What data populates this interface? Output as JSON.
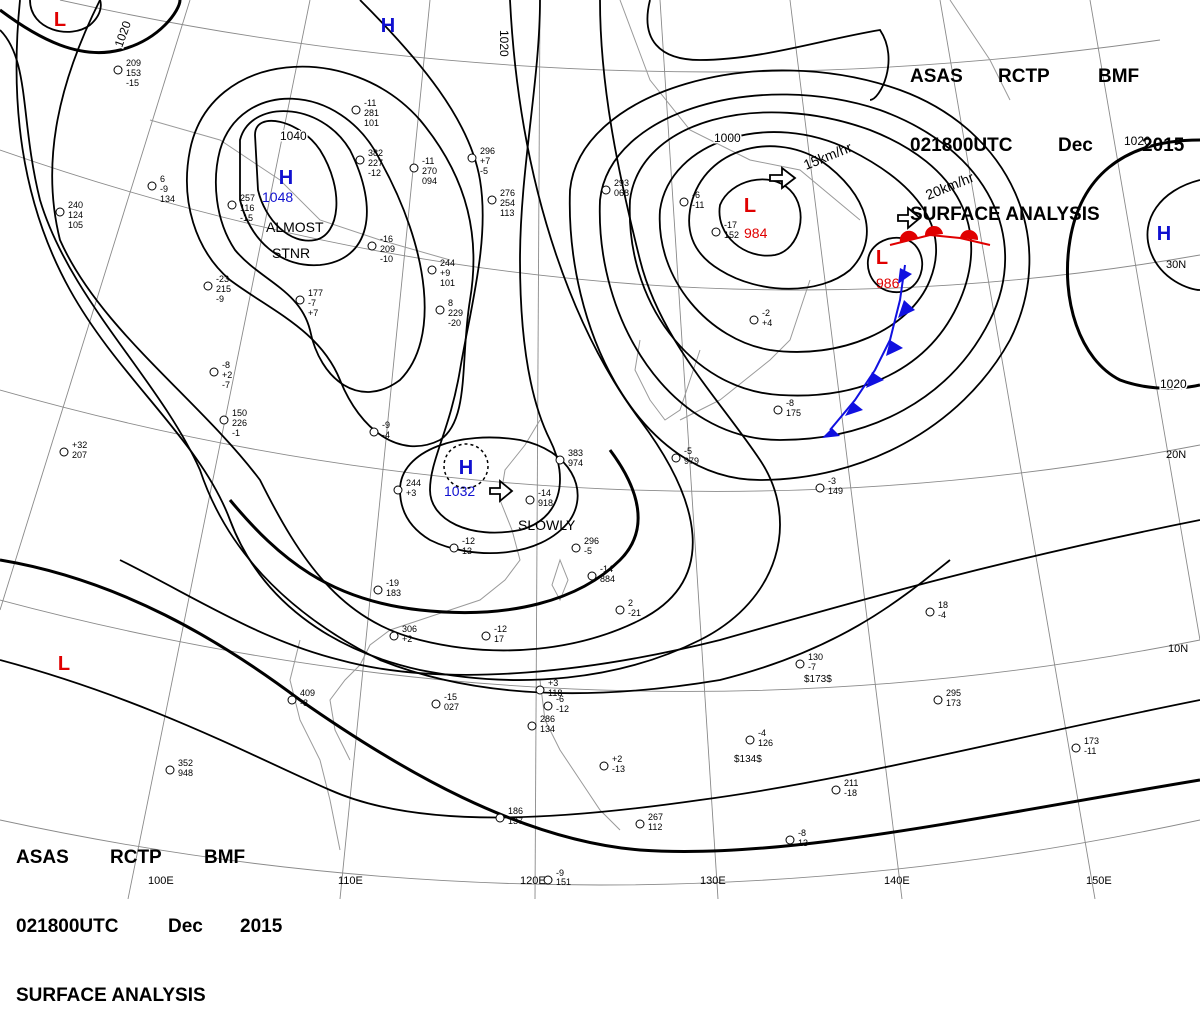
{
  "header": {
    "agency": "ASAS",
    "station": "RCTP",
    "center": "BMF",
    "datetime": "021800UTC",
    "month": "Dec",
    "year": "2015",
    "product": "SURFACE ANALYSIS"
  },
  "longitude_labels": [
    "100E",
    "110E",
    "120E",
    "130E",
    "140E",
    "150E"
  ],
  "latitude_labels": [
    "30N",
    "20N",
    "10N"
  ],
  "isobar_labels": [
    "1020",
    "1020",
    "1040",
    "1000",
    "1020",
    "1020"
  ],
  "pressure_centers": [
    {
      "type": "H",
      "value": "1048",
      "note": ""
    },
    {
      "type": "H",
      "value": "1032",
      "note": ""
    },
    {
      "type": "L",
      "value": "984",
      "note": ""
    },
    {
      "type": "L",
      "value": "986",
      "note": ""
    },
    {
      "type": "H",
      "value": "",
      "note": ""
    },
    {
      "type": "H",
      "value": "",
      "note": ""
    },
    {
      "type": "L",
      "value": "",
      "note": ""
    },
    {
      "type": "L",
      "value": "",
      "note": ""
    }
  ],
  "motion_labels": [
    "ALMOST",
    "STNR",
    "SLOWLY",
    "15km/hr",
    "20km/hr"
  ],
  "colors": {
    "high": "#1010d0",
    "low": "#e00000",
    "cold_front": "#1010e0",
    "warm_front": "#e00000",
    "isobar": "#000000",
    "grid": "#808080",
    "coast": "#909090"
  },
  "station_labels": [
    "209",
    "6",
    "240",
    "257",
    "-11",
    "382",
    "-11",
    "296",
    "276",
    "-16",
    "244",
    "8",
    "177",
    "-23",
    "-8",
    "150",
    "+32",
    "-9",
    "244",
    "-12",
    "-19",
    "306",
    "-12",
    "409",
    "-15",
    "352",
    "-14",
    "383",
    "296",
    "-14",
    "2",
    "-5",
    "293",
    "-6",
    "-17",
    "-2",
    "-8",
    "-3",
    "18",
    "130",
    "295",
    "+3",
    "-6",
    "286",
    "+2",
    "267",
    "-4",
    "211",
    "-8",
    "173",
    "186",
    "-9",
    "153",
    "-9",
    "124",
    "116",
    "281",
    "227",
    "270",
    "+7",
    "254",
    "209",
    "+9",
    "229",
    "-7",
    "215",
    "+2",
    "226",
    "207",
    "-4",
    "+3",
    "13",
    "183",
    "+2",
    "17",
    "-8",
    "027",
    "948",
    "918",
    "974",
    "-5",
    "884",
    "-21",
    "979",
    "068",
    "-11",
    "152",
    "+4",
    "175",
    "149",
    "-4",
    "-7",
    "173",
    "118",
    "-12",
    "134",
    "-13",
    "112",
    "126",
    "-18",
    "13",
    "-11",
    "137",
    "151",
    "-15",
    "134",
    "105",
    "-15",
    "101",
    "-12",
    "094",
    "-5",
    "113",
    "-10",
    "101",
    "-20",
    "+7",
    "-9",
    "-7",
    "-1"
  ],
  "station_markers": [
    "$173$",
    "$134$"
  ]
}
